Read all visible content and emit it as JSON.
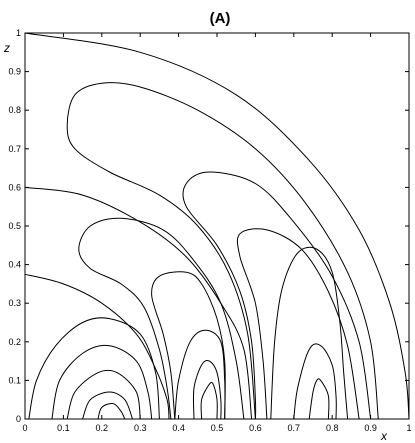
{
  "chart_data": {
    "type": "line",
    "title": "(A)",
    "xlabel": "x",
    "ylabel": "z",
    "xlim": [
      0,
      1
    ],
    "ylim": [
      0,
      1
    ],
    "xticks": [
      "0",
      "0.1",
      "0.2",
      "0.3",
      "0.4",
      "0.5",
      "0.6",
      "0.7",
      "0.8",
      "0.9",
      "1"
    ],
    "yticks": [
      "0",
      "0.1",
      "0.2",
      "0.3",
      "0.4",
      "0.5",
      "0.6",
      "0.7",
      "0.8",
      "0.9",
      "1"
    ],
    "grid": false,
    "series": [
      {
        "points": [
          [
            0.0,
            1.0
          ],
          [
            0.3,
            0.95
          ],
          [
            0.55,
            0.84
          ],
          [
            0.74,
            0.67
          ],
          [
            0.87,
            0.49
          ],
          [
            0.95,
            0.3
          ],
          [
            0.99,
            0.12
          ],
          [
            1.0,
            0.0
          ]
        ]
      },
      {
        "points": [
          [
            0.0,
            0.6
          ],
          [
            0.15,
            0.58
          ],
          [
            0.3,
            0.51
          ],
          [
            0.42,
            0.42
          ],
          [
            0.51,
            0.3
          ],
          [
            0.57,
            0.18
          ],
          [
            0.59,
            0.0
          ]
        ]
      },
      {
        "points": [
          [
            0.0,
            0.375
          ],
          [
            0.1,
            0.35
          ],
          [
            0.2,
            0.3
          ],
          [
            0.29,
            0.22
          ],
          [
            0.34,
            0.13
          ],
          [
            0.37,
            0.05
          ],
          [
            0.375,
            0.0
          ]
        ]
      },
      {
        "points": [
          [
            0.92,
            0.0
          ],
          [
            0.9,
            0.2
          ],
          [
            0.84,
            0.38
          ],
          [
            0.73,
            0.56
          ],
          [
            0.6,
            0.7
          ],
          [
            0.45,
            0.8
          ],
          [
            0.3,
            0.86
          ],
          [
            0.2,
            0.87
          ],
          [
            0.13,
            0.84
          ],
          [
            0.11,
            0.76
          ],
          [
            0.13,
            0.7
          ],
          [
            0.22,
            0.64
          ],
          [
            0.35,
            0.58
          ],
          [
            0.45,
            0.5
          ],
          [
            0.53,
            0.38
          ],
          [
            0.58,
            0.22
          ],
          [
            0.6,
            0.0
          ]
        ]
      },
      {
        "points": [
          [
            0.9,
            0.0
          ],
          [
            0.87,
            0.2
          ],
          [
            0.8,
            0.37
          ],
          [
            0.7,
            0.51
          ],
          [
            0.6,
            0.61
          ],
          [
            0.48,
            0.64
          ],
          [
            0.42,
            0.61
          ],
          [
            0.42,
            0.55
          ],
          [
            0.5,
            0.45
          ],
          [
            0.56,
            0.33
          ],
          [
            0.59,
            0.2
          ],
          [
            0.6,
            0.05
          ],
          [
            0.6,
            0.0
          ]
        ]
      },
      {
        "points": [
          [
            0.87,
            0.0
          ],
          [
            0.84,
            0.19
          ],
          [
            0.79,
            0.33
          ],
          [
            0.72,
            0.44
          ],
          [
            0.63,
            0.49
          ],
          [
            0.56,
            0.48
          ],
          [
            0.56,
            0.42
          ],
          [
            0.6,
            0.3
          ],
          [
            0.62,
            0.15
          ],
          [
            0.63,
            0.0
          ]
        ]
      },
      {
        "points": [
          [
            0.64,
            0.0
          ],
          [
            0.65,
            0.2
          ],
          [
            0.67,
            0.34
          ],
          [
            0.71,
            0.43
          ],
          [
            0.76,
            0.44
          ],
          [
            0.8,
            0.38
          ],
          [
            0.82,
            0.25
          ],
          [
            0.83,
            0.12
          ],
          [
            0.84,
            0.0
          ]
        ]
      },
      {
        "points": [
          [
            0.57,
            0.0
          ],
          [
            0.55,
            0.15
          ],
          [
            0.51,
            0.3
          ],
          [
            0.44,
            0.41
          ],
          [
            0.36,
            0.49
          ],
          [
            0.25,
            0.52
          ],
          [
            0.17,
            0.5
          ],
          [
            0.14,
            0.44
          ],
          [
            0.17,
            0.39
          ],
          [
            0.25,
            0.35
          ],
          [
            0.31,
            0.29
          ],
          [
            0.35,
            0.18
          ],
          [
            0.37,
            0.08
          ],
          [
            0.38,
            0.0
          ]
        ]
      },
      {
        "points": [
          [
            0.52,
            0.0
          ],
          [
            0.52,
            0.15
          ],
          [
            0.5,
            0.26
          ],
          [
            0.46,
            0.35
          ],
          [
            0.42,
            0.38
          ],
          [
            0.35,
            0.37
          ],
          [
            0.33,
            0.32
          ],
          [
            0.36,
            0.22
          ],
          [
            0.38,
            0.12
          ],
          [
            0.39,
            0.0
          ]
        ]
      },
      {
        "points": [
          [
            0.39,
            0.0
          ],
          [
            0.4,
            0.1
          ],
          [
            0.43,
            0.2
          ],
          [
            0.47,
            0.23
          ],
          [
            0.51,
            0.2
          ],
          [
            0.52,
            0.1
          ],
          [
            0.52,
            0.0
          ]
        ]
      },
      {
        "points": [
          [
            0.44,
            0.0
          ],
          [
            0.44,
            0.08
          ],
          [
            0.46,
            0.14
          ],
          [
            0.48,
            0.15
          ],
          [
            0.5,
            0.12
          ],
          [
            0.51,
            0.05
          ],
          [
            0.51,
            0.0
          ]
        ]
      },
      {
        "points": [
          [
            0.46,
            0.0
          ],
          [
            0.46,
            0.05
          ],
          [
            0.48,
            0.09
          ],
          [
            0.49,
            0.09
          ],
          [
            0.5,
            0.05
          ],
          [
            0.5,
            0.0
          ]
        ]
      },
      {
        "points": [
          [
            0.7,
            0.0
          ],
          [
            0.71,
            0.08
          ],
          [
            0.74,
            0.18
          ],
          [
            0.77,
            0.19
          ],
          [
            0.8,
            0.14
          ],
          [
            0.81,
            0.06
          ],
          [
            0.81,
            0.0
          ]
        ]
      },
      {
        "points": [
          [
            0.74,
            0.0
          ],
          [
            0.75,
            0.07
          ],
          [
            0.76,
            0.1
          ],
          [
            0.77,
            0.1
          ],
          [
            0.79,
            0.06
          ],
          [
            0.79,
            0.0
          ]
        ]
      },
      {
        "points": [
          [
            0.01,
            0.0
          ],
          [
            0.03,
            0.1
          ],
          [
            0.08,
            0.19
          ],
          [
            0.15,
            0.25
          ],
          [
            0.22,
            0.26
          ],
          [
            0.3,
            0.22
          ],
          [
            0.34,
            0.12
          ],
          [
            0.35,
            0.0
          ]
        ]
      },
      {
        "points": [
          [
            0.07,
            0.0
          ],
          [
            0.09,
            0.1
          ],
          [
            0.15,
            0.17
          ],
          [
            0.22,
            0.19
          ],
          [
            0.29,
            0.15
          ],
          [
            0.32,
            0.07
          ],
          [
            0.33,
            0.0
          ]
        ]
      },
      {
        "points": [
          [
            0.11,
            0.0
          ],
          [
            0.13,
            0.07
          ],
          [
            0.19,
            0.12
          ],
          [
            0.24,
            0.12
          ],
          [
            0.29,
            0.07
          ],
          [
            0.3,
            0.0
          ]
        ]
      },
      {
        "points": [
          [
            0.15,
            0.0
          ],
          [
            0.17,
            0.05
          ],
          [
            0.22,
            0.07
          ],
          [
            0.26,
            0.05
          ],
          [
            0.28,
            0.0
          ]
        ]
      },
      {
        "points": [
          [
            0.19,
            0.0
          ],
          [
            0.2,
            0.03
          ],
          [
            0.23,
            0.04
          ],
          [
            0.25,
            0.02
          ],
          [
            0.26,
            0.0
          ]
        ]
      }
    ]
  }
}
